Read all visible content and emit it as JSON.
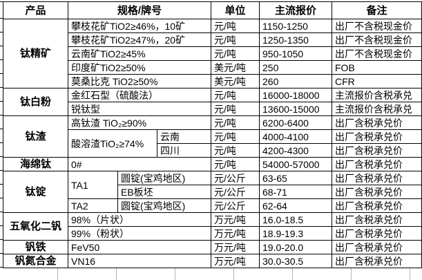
{
  "table": {
    "columns": {
      "product": "产品",
      "spec": "规格/牌号",
      "unit": "单位",
      "price": "主流报价",
      "remark": "备注"
    },
    "rows": [
      {
        "product": "钛精矿",
        "spec": "攀枝花矿TiO2≥46%，10矿",
        "unit": "元/吨",
        "price": "1150-1250",
        "remark": "出厂不含税现金价"
      },
      {
        "spec": "攀枝花矿TiO2≥47%，20矿",
        "unit": "元/吨",
        "price": "1250-1350",
        "remark": "出厂不含税现金价"
      },
      {
        "spec": "云南矿TiO2≥45%",
        "unit": "元/吨",
        "price": "950-1050",
        "remark": "出厂不含税现金价"
      },
      {
        "spec": "印度矿TiO2≥50%",
        "unit": "美元/吨",
        "price": "250",
        "remark": "FOB"
      },
      {
        "spec": "莫桑比克 TiO2≥50%",
        "unit": "美元/吨",
        "price": "260",
        "remark": "CFR"
      },
      {
        "product": "钛白粉",
        "spec": "金红石型（硫酸法）",
        "unit": "元/吨",
        "price": "16000-18000",
        "remark": "主流报价含税承兑"
      },
      {
        "spec": "锐钛型",
        "unit": "元/吨",
        "price": "13600-15000",
        "remark": "主流报价含税承兑"
      },
      {
        "product": "钛渣",
        "spec": "高钛渣 TiO₂≥90%",
        "unit": "元/吨",
        "price": "6200-6400",
        "remark": "出厂含税承兑价"
      },
      {
        "spec": "酸溶渣TiO₂≥74%",
        "region": "云南",
        "unit": "元/吨",
        "price": "4000-4100",
        "remark": "出厂含税承兑价"
      },
      {
        "region": "四川",
        "unit": "元/吨",
        "price": "4200-4300",
        "remark": "出厂含税承兑价"
      },
      {
        "product": "海绵钛",
        "spec": "0#",
        "unit": "元/吨",
        "price": "54000-57000",
        "remark": "出厂含税承兑价"
      },
      {
        "product": "钛锭",
        "grade": "TA1",
        "form": "圆锭(宝鸡地区)",
        "unit": "元/公斤",
        "price": "63-65",
        "remark": "出厂含税承兑价"
      },
      {
        "form": "EB板坯",
        "unit": "元/公斤",
        "price": "68-71",
        "remark": "出厂含税承兑价"
      },
      {
        "grade": "TA2",
        "form": "圆锭(宝鸡地区)",
        "unit": "元/公斤",
        "price": "62-64",
        "remark": "出厂含税承兑价"
      },
      {
        "product": "五氧化二钒",
        "spec": "98%（片状）",
        "unit": "万元/吨",
        "price": "16.0-18.5",
        "remark": "出厂含税承兑价"
      },
      {
        "spec": "99%（粉状）",
        "unit": "万元/吨",
        "price": "18.9-19.3",
        "remark": "出厂含税承兑价"
      },
      {
        "product": "钒铁",
        "spec": "FeV50",
        "unit": "万元/吨",
        "price": "19.0-20.0",
        "remark": "出厂含税承兑价"
      },
      {
        "product": "钒氮合金",
        "spec": "VN16",
        "unit": "万元/吨",
        "price": "30.0-30.5",
        "remark": "出厂含税承兑价"
      }
    ]
  },
  "colors": {
    "border": "#000000",
    "background": "#ffffff",
    "text": "#000000",
    "grid_remnant": "#b4b4b4"
  }
}
